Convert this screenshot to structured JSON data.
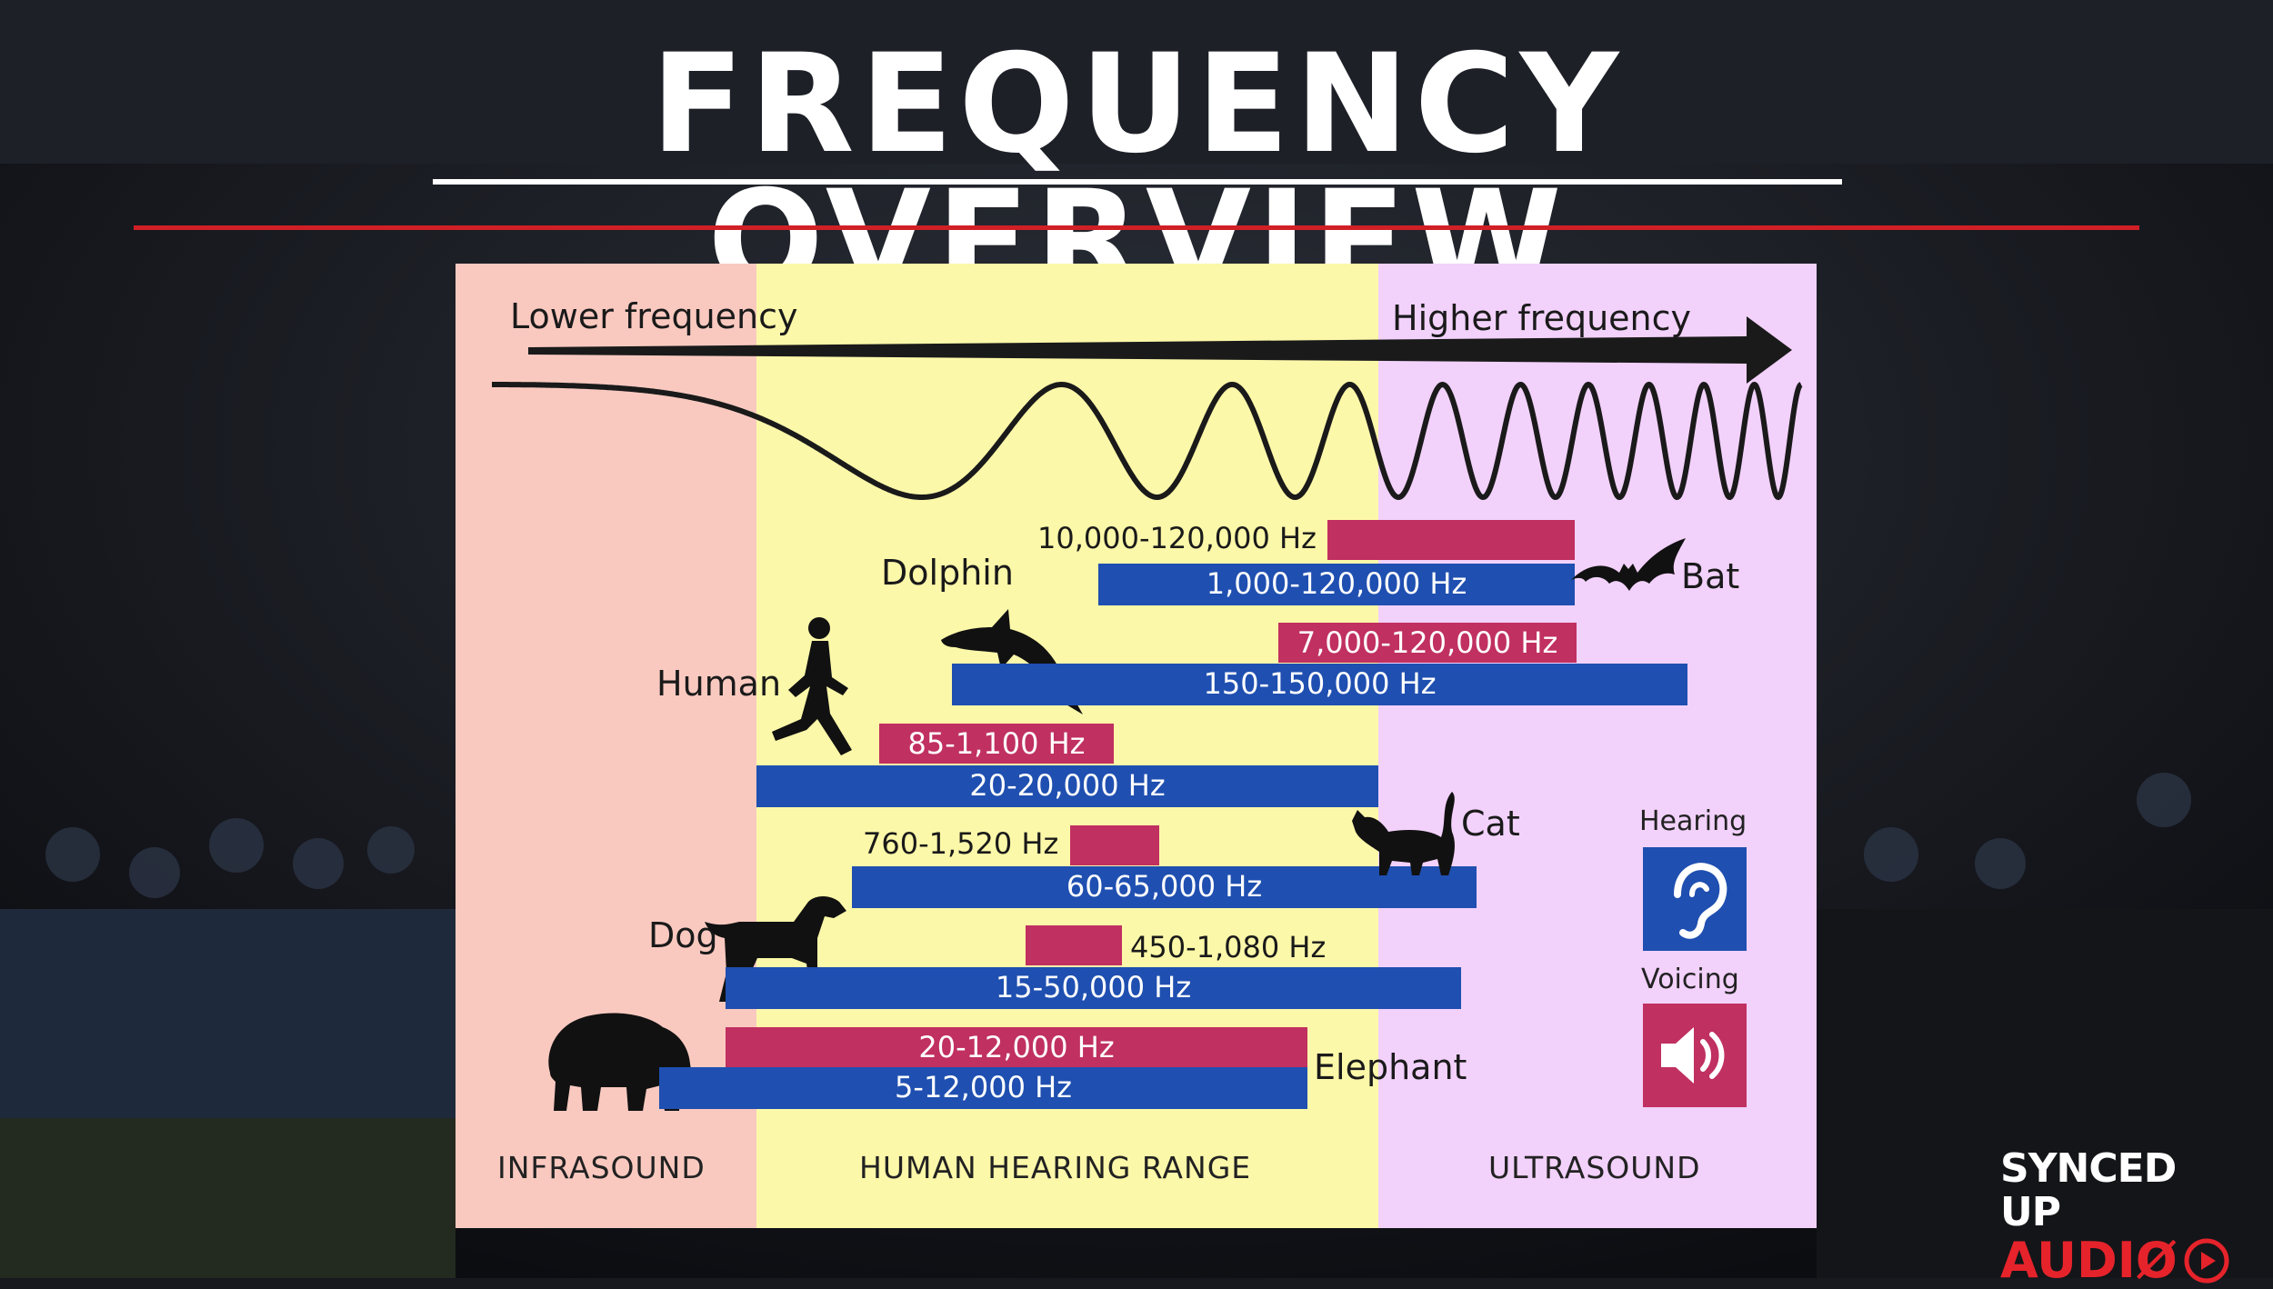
{
  "title": "FREQUENCY OVERVIEW",
  "colors": {
    "accent_red": "#d11f26",
    "infrasound_bg": "#f9c9c0",
    "human_bg": "#fcf8a9",
    "ultrasound_bg": "#f2d1fb",
    "hearing_bar": "#1f4fb0",
    "voicing_bar": "#c03060"
  },
  "diagram": {
    "axis_left": "Lower frequency",
    "axis_right": "Higher frequency",
    "zones": {
      "infra": "INFRASOUND",
      "human": "HUMAN HEARING RANGE",
      "ultra": "ULTRASOUND"
    },
    "legend": {
      "hearing": "Hearing",
      "voicing": "Voicing",
      "hearing_icon": "ear-icon",
      "voicing_icon": "speaker-icon"
    },
    "animals": {
      "bat": {
        "name": "Bat",
        "voicing": "10,000-120,000 Hz",
        "hearing": "1,000-120,000 Hz"
      },
      "dolphin": {
        "name": "Dolphin",
        "voicing": "7,000-120,000 Hz",
        "hearing": "150-150,000 Hz"
      },
      "human": {
        "name": "Human",
        "voicing": "85-1,100 Hz",
        "hearing": "20-20,000 Hz"
      },
      "cat": {
        "name": "Cat",
        "voicing": "760-1,520 Hz",
        "hearing": "60-65,000 Hz"
      },
      "dog": {
        "name": "Dog",
        "voicing": "450-1,080 Hz",
        "hearing": "15-50,000 Hz"
      },
      "elephant": {
        "name": "Elephant",
        "voicing": "20-12,000 Hz",
        "hearing": "5-12,000 Hz"
      }
    }
  },
  "logo": {
    "line1": "SYNCED UP",
    "line2": "AUDIØ"
  }
}
